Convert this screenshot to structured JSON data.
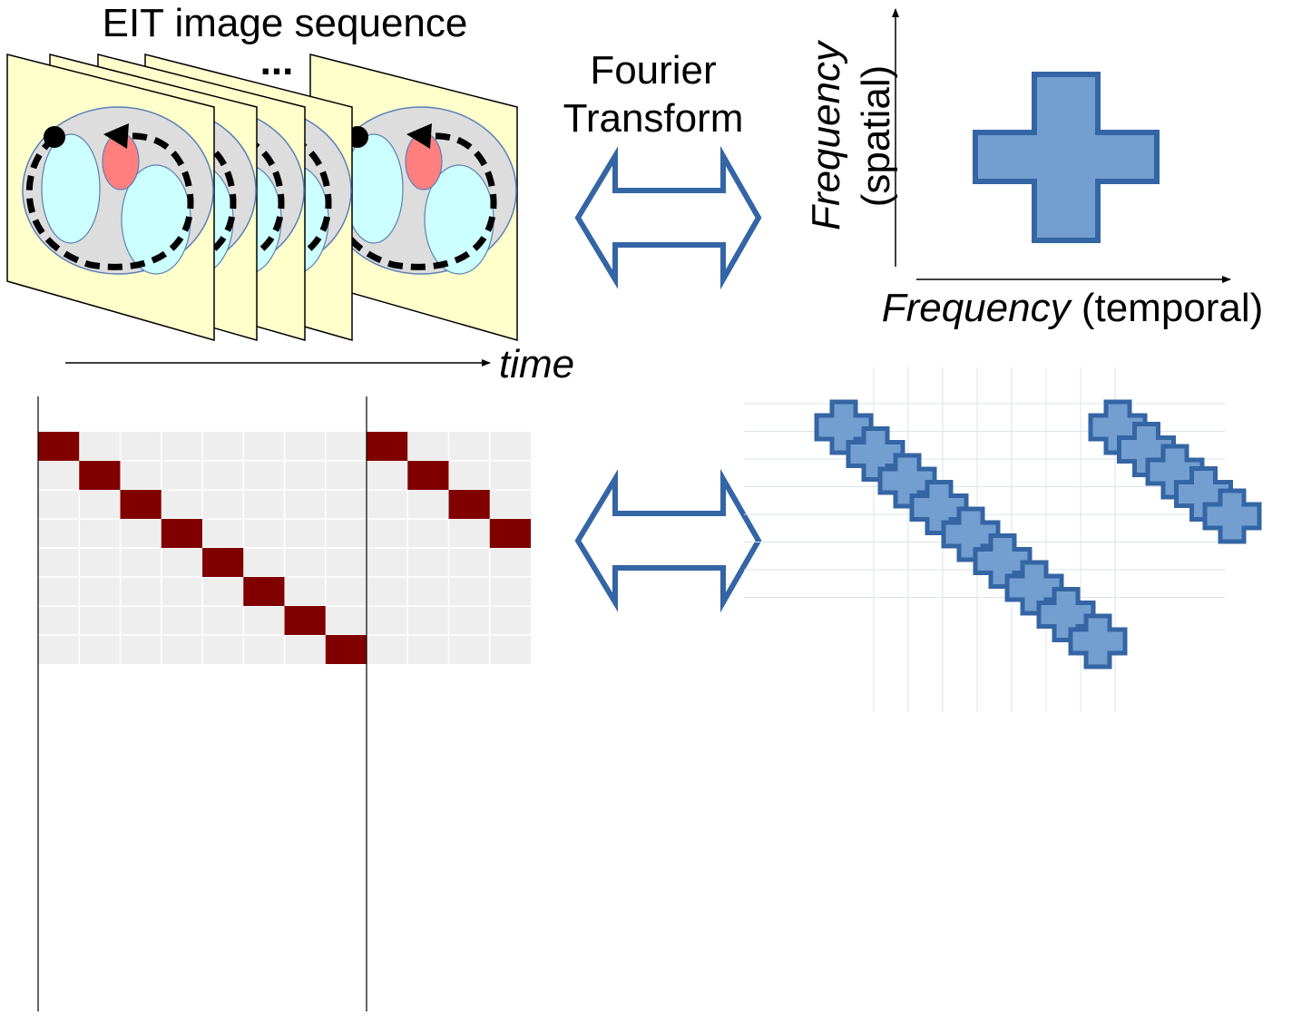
{
  "sequence": {
    "title": "EIT image sequence",
    "ellipsis": "...",
    "time_label": "time"
  },
  "transform": {
    "line1": "Fourier",
    "line2": "Transform"
  },
  "axes": {
    "y": {
      "italic": "Frequency",
      "plain": "(spatial)"
    },
    "x": {
      "italic": "Frequency",
      "plain": "(temporal)"
    }
  }
}
